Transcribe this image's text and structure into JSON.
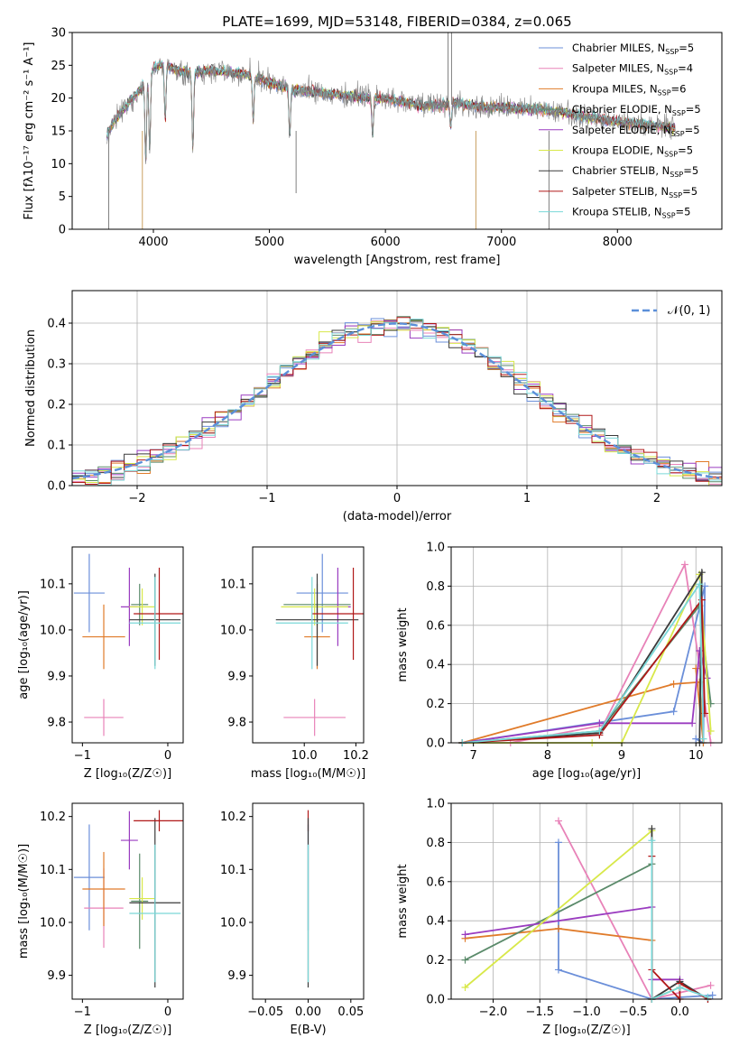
{
  "figure_title": "PLATE=1699, MJD=53148, FIBERID=0384, z=0.065",
  "colors": {
    "Chabrier MILES": "#6b8fd9",
    "Salpeter MILES": "#e882b8",
    "Kroupa MILES": "#e07b2a",
    "Chabrier ELODIE": "#5a8a6a",
    "Salpeter ELODIE": "#9a3cc0",
    "Kroupa ELODIE": "#d8e84a",
    "Chabrier STELIB": "#3a3a3a",
    "Salpeter STELIB": "#b01818",
    "Kroupa STELIB": "#7ad8d8",
    "data": "#808080",
    "normal": "#5b8fd9"
  },
  "chart_data": [
    {
      "id": "spectrum",
      "type": "line",
      "title": "PLATE=1699, MJD=53148, FIBERID=0384, z=0.065",
      "xlabel": "wavelength [Angstrom, rest frame]",
      "ylabel": "Flux [fλ10⁻¹⁷ erg cm⁻² s⁻¹ A⁻¹]",
      "xlim": [
        3300,
        8900
      ],
      "ylim": [
        0,
        30
      ],
      "xticks": [
        4000,
        5000,
        6000,
        7000,
        8000
      ],
      "yticks": [
        0,
        5,
        10,
        15,
        20,
        25,
        30
      ],
      "grid": false,
      "legend_position": "top-right",
      "legend": [
        {
          "name": "Chabrier MILES, N",
          "sub": "SSP",
          "tail": "=5"
        },
        {
          "name": "Salpeter MILES, N",
          "sub": "SSP",
          "tail": "=4"
        },
        {
          "name": "Kroupa MILES, N",
          "sub": "SSP",
          "tail": "=6"
        },
        {
          "name": "Chabrier ELODIE, N",
          "sub": "SSP",
          "tail": "=5"
        },
        {
          "name": "Salpeter ELODIE, N",
          "sub": "SSP",
          "tail": "=5"
        },
        {
          "name": "Kroupa ELODIE, N",
          "sub": "SSP",
          "tail": "=5"
        },
        {
          "name": "Chabrier STELIB, N",
          "sub": "SSP",
          "tail": "=5"
        },
        {
          "name": "Salpeter STELIB, N",
          "sub": "SSP",
          "tail": "=5"
        },
        {
          "name": "Kroupa STELIB, N",
          "sub": "SSP",
          "tail": "=5"
        }
      ],
      "continuum": {
        "x": [
          3600,
          3700,
          3800,
          3900,
          4000,
          4100,
          4200,
          4300,
          4500,
          4800,
          5000,
          5200,
          5500,
          5800,
          6000,
          6300,
          6500,
          6600,
          6800,
          7000,
          7300,
          7500,
          7800,
          8000,
          8300,
          8500
        ],
        "y": [
          14.5,
          17.5,
          19.5,
          21.5,
          24.5,
          25.3,
          24.2,
          23.8,
          24.2,
          23.6,
          22.4,
          21.3,
          20.7,
          20.1,
          19.9,
          18.9,
          18.9,
          19.3,
          18.7,
          18.5,
          18.3,
          17.9,
          16.9,
          16.4,
          15.9,
          15.3
        ]
      }
    },
    {
      "id": "residuals",
      "type": "step-histogram",
      "xlabel": "(data-model)/error",
      "ylabel": "Normed distribution",
      "xlim": [
        -2.5,
        2.5
      ],
      "ylim": [
        0,
        0.48
      ],
      "xticks": [
        -2,
        -1,
        0,
        1,
        2
      ],
      "yticks": [
        0.0,
        0.1,
        0.2,
        0.3,
        0.4
      ],
      "grid": true,
      "legend_position": "top-right",
      "legend_label": "𝒩(0, 1)",
      "bin_width": 0.1
    },
    {
      "id": "age_vs_Z",
      "type": "errorbar",
      "xlabel": "Z [log₁₀(Z/Z☉)]",
      "ylabel": "age  [log₁₀(age/yr)]",
      "xlim": [
        -1.12,
        0.18
      ],
      "ylim": [
        9.755,
        10.18
      ],
      "xticks": [
        -1,
        0
      ],
      "yticks": [
        9.8,
        9.9,
        10.0,
        10.1
      ],
      "points": [
        {
          "model": "Chabrier MILES",
          "x": -0.92,
          "xerr": 0.18,
          "y": 10.08,
          "yerr": 0.085
        },
        {
          "model": "Salpeter MILES",
          "x": -0.75,
          "xerr": 0.23,
          "y": 9.81,
          "yerr": 0.04
        },
        {
          "model": "Kroupa MILES",
          "x": -0.75,
          "xerr": 0.25,
          "y": 9.985,
          "yerr": 0.07
        },
        {
          "model": "Chabrier ELODIE",
          "x": -0.33,
          "xerr": 0.1,
          "y": 10.055,
          "yerr": 0.045
        },
        {
          "model": "Salpeter ELODIE",
          "x": -0.45,
          "xerr": 0.1,
          "y": 10.05,
          "yerr": 0.085
        },
        {
          "model": "Kroupa ELODIE",
          "x": -0.3,
          "xerr": 0.15,
          "y": 10.05,
          "yerr": 0.04
        },
        {
          "model": "Chabrier STELIB",
          "x": -0.15,
          "xerr": 0.3,
          "y": 10.022,
          "yerr": 0.1
        },
        {
          "model": "Salpeter STELIB",
          "x": -0.1,
          "xerr": 0.3,
          "y": 10.035,
          "yerr": 0.1
        },
        {
          "model": "Kroupa STELIB",
          "x": -0.15,
          "xerr": 0.3,
          "y": 10.015,
          "yerr": 0.1
        }
      ]
    },
    {
      "id": "age_vs_mass",
      "type": "errorbar",
      "xlabel": "mass [log₁₀(M/M☉)]",
      "ylabel": "",
      "xlim": [
        9.8,
        10.23
      ],
      "ylim": [
        9.755,
        10.18
      ],
      "xticks": [
        10.0,
        10.2
      ],
      "yticks": [
        9.8,
        9.9,
        10.0,
        10.1
      ],
      "points": [
        {
          "model": "Chabrier MILES",
          "x": 10.07,
          "xerr": 0.1,
          "y": 10.08,
          "yerr": 0.085
        },
        {
          "model": "Salpeter MILES",
          "x": 10.04,
          "xerr": 0.12,
          "y": 9.81,
          "yerr": 0.04
        },
        {
          "model": "Kroupa MILES",
          "x": 10.05,
          "xerr": 0.05,
          "y": 9.985,
          "yerr": 0.07
        },
        {
          "model": "Chabrier ELODIE",
          "x": 10.05,
          "xerr": 0.13,
          "y": 10.055,
          "yerr": 0.045
        },
        {
          "model": "Salpeter ELODIE",
          "x": 10.13,
          "xerr": 0.05,
          "y": 10.05,
          "yerr": 0.085
        },
        {
          "model": "Kroupa ELODIE",
          "x": 10.04,
          "xerr": 0.13,
          "y": 10.05,
          "yerr": 0.04
        },
        {
          "model": "Chabrier STELIB",
          "x": 10.05,
          "xerr": 0.16,
          "y": 10.022,
          "yerr": 0.1
        },
        {
          "model": "Salpeter STELIB",
          "x": 10.19,
          "xerr": 0.16,
          "y": 10.035,
          "yerr": 0.1
        },
        {
          "model": "Kroupa STELIB",
          "x": 10.03,
          "xerr": 0.14,
          "y": 10.015,
          "yerr": 0.1
        }
      ]
    },
    {
      "id": "weight_vs_age",
      "type": "line",
      "xlabel": "age  [log₁₀(age/yr)]",
      "ylabel": "mass weight",
      "xlim": [
        6.7,
        10.35
      ],
      "ylim": [
        0,
        1
      ],
      "xticks": [
        7,
        8,
        9,
        10
      ],
      "yticks": [
        0.0,
        0.2,
        0.4,
        0.6,
        0.8,
        1.0
      ],
      "grid": true,
      "series": [
        {
          "model": "Chabrier MILES",
          "x": [
            6.85,
            9.7,
            10.12,
            10.1,
            10.0
          ],
          "y": [
            0.0,
            0.16,
            0.8,
            0.0,
            0.02
          ]
        },
        {
          "model": "Salpeter MILES",
          "x": [
            7.5,
            8.75,
            9.85,
            10.2
          ],
          "y": [
            0.0,
            0.09,
            0.91,
            0.0
          ]
        },
        {
          "model": "Kroupa MILES",
          "x": [
            6.85,
            9.7,
            10.05,
            10.1,
            10.0
          ],
          "y": [
            0.0,
            0.3,
            0.31,
            0.0,
            0.38
          ]
        },
        {
          "model": "Chabrier ELODIE",
          "x": [
            6.85,
            8.7,
            10.05,
            10.2
          ],
          "y": [
            0.0,
            0.06,
            0.7,
            0.2
          ]
        },
        {
          "model": "Salpeter ELODIE",
          "x": [
            6.85,
            8.7,
            9.95,
            10.05,
            10.15
          ],
          "y": [
            0.0,
            0.1,
            0.1,
            0.47,
            0.33
          ]
        },
        {
          "model": "Kroupa ELODIE",
          "x": [
            6.85,
            8.6,
            9.0,
            10.05,
            10.2
          ],
          "y": [
            0.0,
            0.0,
            0.0,
            0.86,
            0.06
          ]
        },
        {
          "model": "Chabrier STELIB",
          "x": [
            6.85,
            8.7,
            10.08,
            10.05
          ],
          "y": [
            0.0,
            0.05,
            0.87,
            0.0
          ]
        },
        {
          "model": "Salpeter STELIB",
          "x": [
            6.85,
            8.7,
            10.08,
            10.12
          ],
          "y": [
            0.0,
            0.04,
            0.73,
            0.15
          ]
        },
        {
          "model": "Kroupa STELIB",
          "x": [
            6.85,
            8.7,
            10.05,
            10.1
          ],
          "y": [
            0.0,
            0.06,
            0.81,
            0.02
          ]
        }
      ]
    },
    {
      "id": "mass_vs_Z",
      "type": "errorbar",
      "xlabel": "Z [log₁₀(Z/Z☉)]",
      "ylabel": "mass [log₁₀(M/M☉)]",
      "xlim": [
        -1.12,
        0.18
      ],
      "ylim": [
        9.855,
        10.225
      ],
      "xticks": [
        -1,
        0
      ],
      "yticks": [
        9.9,
        10.0,
        10.1,
        10.2
      ],
      "points": [
        {
          "model": "Chabrier MILES",
          "x": -0.92,
          "xerr": 0.18,
          "y": 10.085,
          "yerr": 0.1
        },
        {
          "model": "Salpeter MILES",
          "x": -0.75,
          "xerr": 0.23,
          "y": 10.027,
          "yerr": 0.075
        },
        {
          "model": "Kroupa MILES",
          "x": -0.75,
          "xerr": 0.25,
          "y": 10.063,
          "yerr": 0.07
        },
        {
          "model": "Chabrier ELODIE",
          "x": -0.33,
          "xerr": 0.1,
          "y": 10.04,
          "yerr": 0.09
        },
        {
          "model": "Salpeter ELODIE",
          "x": -0.45,
          "xerr": 0.1,
          "y": 10.155,
          "yerr": 0.055
        },
        {
          "model": "Kroupa ELODIE",
          "x": -0.3,
          "xerr": 0.15,
          "y": 10.045,
          "yerr": 0.04
        },
        {
          "model": "Chabrier STELIB",
          "x": -0.15,
          "xerr": 0.3,
          "y": 10.037,
          "yerr": 0.16
        },
        {
          "model": "Salpeter STELIB",
          "x": -0.1,
          "xerr": 0.3,
          "y": 10.192,
          "yerr": 0.02
        },
        {
          "model": "Kroupa STELIB",
          "x": -0.15,
          "xerr": 0.3,
          "y": 10.017,
          "yerr": 0.13
        }
      ]
    },
    {
      "id": "mass_vs_ebv",
      "type": "errorbar",
      "xlabel": "E(B-V)",
      "ylabel": "",
      "xlim": [
        -0.065,
        0.065
      ],
      "ylim": [
        9.855,
        10.225
      ],
      "xticks": [
        -0.05,
        0.0,
        0.05
      ],
      "yticks": [
        9.9,
        10.0,
        10.1,
        10.2
      ],
      "points": [
        {
          "model": "Chabrier MILES",
          "x": 0.0,
          "xerr": 0.0,
          "y": 10.085,
          "yerr": 0.1
        },
        {
          "model": "Salpeter STELIB",
          "x": 0.0,
          "xerr": 0.0,
          "y": 10.192,
          "yerr": 0.02
        },
        {
          "model": "Chabrier STELIB",
          "x": 0.0,
          "xerr": 0.0,
          "y": 10.037,
          "yerr": 0.16
        },
        {
          "model": "Kroupa STELIB",
          "x": 0.0,
          "xerr": 0.0,
          "y": 10.017,
          "yerr": 0.13
        }
      ]
    },
    {
      "id": "weight_vs_Z",
      "type": "line",
      "xlabel": "Z [log₁₀(Z/Z☉)]",
      "ylabel": "mass weight",
      "xlim": [
        -2.45,
        0.45
      ],
      "ylim": [
        0,
        1
      ],
      "xticks": [
        -2.0,
        -1.5,
        -1.0,
        -0.5,
        0.0
      ],
      "yticks": [
        0.0,
        0.2,
        0.4,
        0.6,
        0.8,
        1.0
      ],
      "grid": true,
      "series": [
        {
          "model": "Chabrier MILES",
          "x": [
            -1.3,
            -1.3,
            -0.3,
            0.35
          ],
          "y": [
            0.8,
            0.15,
            0.0,
            0.02
          ]
        },
        {
          "model": "Salpeter MILES",
          "x": [
            -1.3,
            -0.3,
            0.33
          ],
          "y": [
            0.91,
            0.0,
            0.07
          ]
        },
        {
          "model": "Kroupa MILES",
          "x": [
            -2.3,
            -1.3,
            -0.3
          ],
          "y": [
            0.31,
            0.36,
            0.3
          ]
        },
        {
          "model": "Chabrier ELODIE",
          "x": [
            -2.3,
            -0.3,
            -0.3
          ],
          "y": [
            0.2,
            0.69,
            0.0
          ]
        },
        {
          "model": "Salpeter ELODIE",
          "x": [
            -2.3,
            -0.3,
            -0.3,
            0.0
          ],
          "y": [
            0.33,
            0.47,
            0.1,
            0.1
          ]
        },
        {
          "model": "Kroupa ELODIE",
          "x": [
            -2.3,
            -0.3,
            -0.3,
            0.0
          ],
          "y": [
            0.06,
            0.86,
            0.0,
            0.06
          ]
        },
        {
          "model": "Chabrier STELIB",
          "x": [
            -0.3,
            -0.3,
            0.0,
            0.3
          ],
          "y": [
            0.87,
            0.0,
            0.09,
            0.0
          ]
        },
        {
          "model": "Salpeter STELIB",
          "x": [
            -0.3,
            -0.3,
            -0.3,
            0.0,
            0.0,
            0.3
          ],
          "y": [
            0.73,
            0.0,
            0.15,
            0.0,
            0.08,
            0.0
          ]
        },
        {
          "model": "Kroupa STELIB",
          "x": [
            -0.3,
            -0.3,
            0.0,
            0.3
          ],
          "y": [
            0.81,
            0.0,
            0.06,
            0.01
          ]
        }
      ]
    }
  ]
}
